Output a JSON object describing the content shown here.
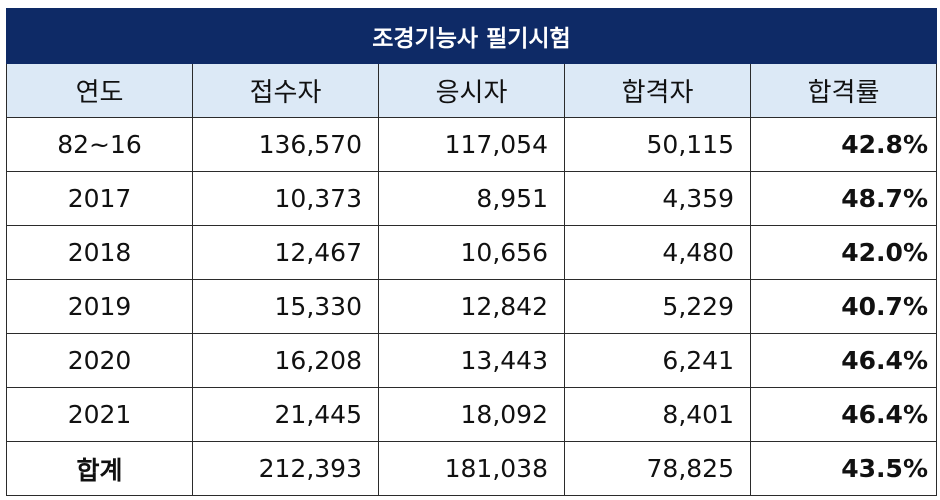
{
  "table": {
    "title": "조경기능사 필기시험",
    "headers": [
      "연도",
      "접수자",
      "응시자",
      "합격자",
      "합격률"
    ],
    "rows": [
      {
        "year": "82~16",
        "applicants": "136,570",
        "examinees": "117,054",
        "passed": "50,115",
        "rate": "42.8%"
      },
      {
        "year": "2017",
        "applicants": "10,373",
        "examinees": "8,951",
        "passed": "4,359",
        "rate": "48.7%"
      },
      {
        "year": "2018",
        "applicants": "12,467",
        "examinees": "10,656",
        "passed": "4,480",
        "rate": "42.0%"
      },
      {
        "year": "2019",
        "applicants": "15,330",
        "examinees": "12,842",
        "passed": "5,229",
        "rate": "40.7%"
      },
      {
        "year": "2020",
        "applicants": "16,208",
        "examinees": "13,443",
        "passed": "6,241",
        "rate": "46.4%"
      },
      {
        "year": "2021",
        "applicants": "21,445",
        "examinees": "18,092",
        "passed": "8,401",
        "rate": "46.4%"
      },
      {
        "year": "합계",
        "applicants": "212,393",
        "examinees": "181,038",
        "passed": "78,825",
        "rate": "43.5%"
      }
    ]
  },
  "colors": {
    "title_bg": "#0e2a66",
    "header_bg": "#dce9f6",
    "border": "#2b2b2b"
  }
}
